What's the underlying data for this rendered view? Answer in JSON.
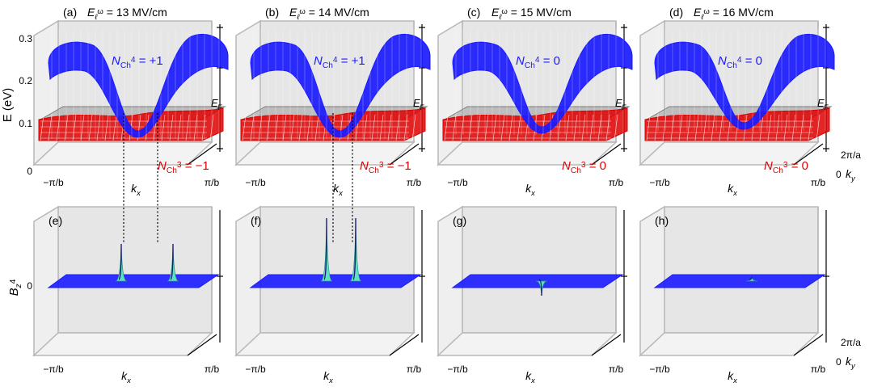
{
  "figure": {
    "colors": {
      "conduction_band": "#1a1aff",
      "valence_band": "#e00000",
      "fermi_plane": "#9a9a9a",
      "box_wall": "#e6e6e6",
      "box_edge": "#b8b8b8",
      "peak": "#5fe0c0",
      "connector": "#000000"
    },
    "top_row": {
      "ylabel": "E (eV)",
      "yticks": [
        "0.3",
        "0.2",
        "0.1",
        "0"
      ],
      "fermi_label": "E",
      "fermi_sub": "F",
      "xlabel": "k",
      "xlabel_sub": "x",
      "xtick_left": "−π/b",
      "xtick_right": "π/b",
      "ky_label": "k",
      "ky_sub": "y",
      "ky_ticks": [
        "2π/a",
        "0"
      ],
      "panels": [
        {
          "letter": "(a)",
          "field_value": "13 MV/cm",
          "n4_value": "+1",
          "n3_value": "−1",
          "gap": 0.0
        },
        {
          "letter": "(b)",
          "field_value": "14 MV/cm",
          "n4_value": "+1",
          "n3_value": "−1",
          "gap": 0.0
        },
        {
          "letter": "(c)",
          "field_value": "15 MV/cm",
          "n4_value": "0",
          "n3_value": "0",
          "gap": 0.5
        },
        {
          "letter": "(d)",
          "field_value": "16 MV/cm",
          "n4_value": "0",
          "n3_value": "0",
          "gap": 1.0
        }
      ],
      "field_symbol": "E",
      "field_sub": "ℓ",
      "field_sup": "ω",
      "n_symbol": "N",
      "n_sub": "Ch",
      "n4_sup": "4",
      "n3_sup": "3"
    },
    "bottom_row": {
      "ylabel": "B",
      "ylabel_sub": "z",
      "ylabel_sup": "4",
      "ytick": "0",
      "panels": [
        {
          "letter": "(e)",
          "peaks": [
            {
              "kx": -0.1,
              "height": 0.55,
              "sign": 1
            },
            {
              "kx": 0.22,
              "height": 0.55,
              "sign": 1
            }
          ]
        },
        {
          "letter": "(f)",
          "peaks": [
            {
              "kx": -0.08,
              "height": 0.95,
              "sign": 1
            },
            {
              "kx": 0.1,
              "height": 0.95,
              "sign": 1
            }
          ]
        },
        {
          "letter": "(g)",
          "peaks": [
            {
              "kx": 0.0,
              "height": 0.25,
              "sign": -1
            }
          ]
        },
        {
          "letter": "(h)",
          "peaks": [
            {
              "kx": 0.05,
              "height": 0.04,
              "sign": 1
            }
          ]
        }
      ]
    }
  }
}
